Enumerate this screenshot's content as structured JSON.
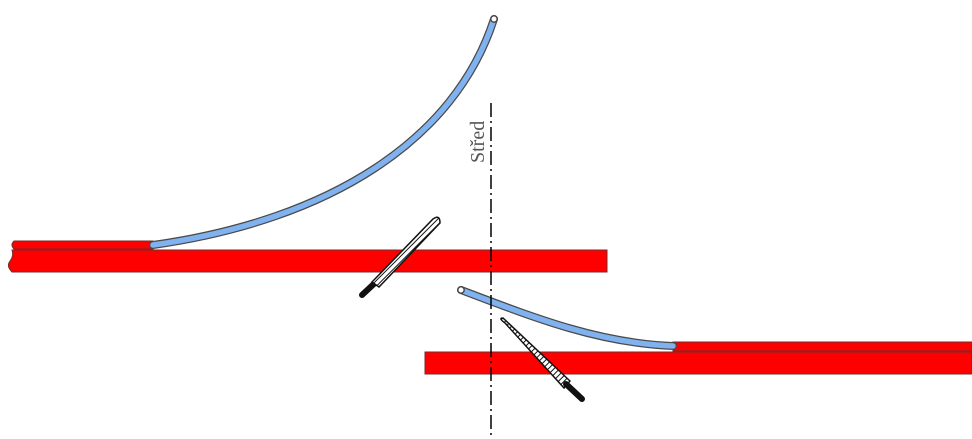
{
  "diagram": {
    "center_label": "Střed"
  },
  "colors": {
    "rail": "#ff0000",
    "rail_outline": "#7a2a2a",
    "curve_fill": "#7fb2ee",
    "curve_outline": "#4a4a4a",
    "centerline": "#000000",
    "label": "#555555",
    "blade_dark": "#111111",
    "blade_light": "#ffffff"
  }
}
